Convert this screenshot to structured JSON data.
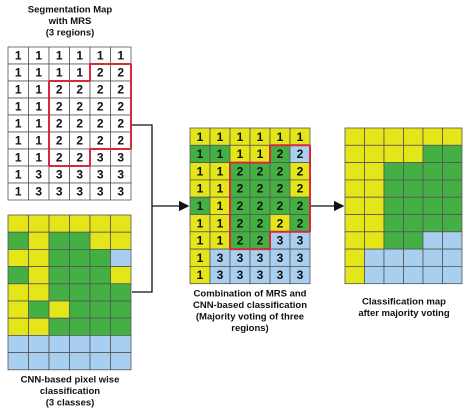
{
  "segmentation": {
    "title": [
      "Segmentation Map",
      "with MRS",
      "(3 regions)"
    ],
    "rows": [
      [
        1,
        1,
        1,
        1,
        1,
        1
      ],
      [
        1,
        1,
        1,
        1,
        2,
        2
      ],
      [
        1,
        1,
        2,
        2,
        2,
        2
      ],
      [
        1,
        1,
        2,
        2,
        2,
        2
      ],
      [
        1,
        1,
        2,
        2,
        2,
        2
      ],
      [
        1,
        1,
        2,
        2,
        2,
        2
      ],
      [
        1,
        1,
        2,
        2,
        3,
        3
      ],
      [
        1,
        3,
        3,
        3,
        3,
        3
      ],
      [
        1,
        3,
        3,
        3,
        3,
        3
      ]
    ]
  },
  "cnn": {
    "caption": [
      "CNN-based pixel wise",
      "classification",
      "(3 classes)"
    ],
    "colors": [
      [
        "Y",
        "Y",
        "Y",
        "Y",
        "Y",
        "Y"
      ],
      [
        "G",
        "Y",
        "G",
        "G",
        "Y",
        "Y"
      ],
      [
        "Y",
        "Y",
        "G",
        "G",
        "G",
        "B"
      ],
      [
        "G",
        "Y",
        "G",
        "G",
        "G",
        "Y"
      ],
      [
        "Y",
        "Y",
        "G",
        "G",
        "G",
        "G"
      ],
      [
        "Y",
        "G",
        "Y",
        "G",
        "G",
        "G"
      ],
      [
        "Y",
        "Y",
        "G",
        "G",
        "G",
        "G"
      ],
      [
        "B",
        "B",
        "B",
        "B",
        "B",
        "B"
      ],
      [
        "B",
        "B",
        "B",
        "B",
        "B",
        "B"
      ]
    ]
  },
  "combination": {
    "caption": [
      "Combination of MRS and",
      "CNN-based classification",
      "(Majority voting of three",
      "regions)"
    ],
    "rows": [
      [
        1,
        1,
        1,
        1,
        1,
        1
      ],
      [
        1,
        1,
        1,
        1,
        2,
        2
      ],
      [
        1,
        1,
        2,
        2,
        2,
        2
      ],
      [
        1,
        1,
        2,
        2,
        2,
        2
      ],
      [
        1,
        1,
        2,
        2,
        2,
        2
      ],
      [
        1,
        1,
        2,
        2,
        2,
        2
      ],
      [
        1,
        1,
        2,
        2,
        3,
        3
      ],
      [
        1,
        3,
        3,
        3,
        3,
        3
      ],
      [
        1,
        3,
        3,
        3,
        3,
        3
      ]
    ],
    "colors": [
      [
        "Y",
        "Y",
        "Y",
        "Y",
        "Y",
        "Y"
      ],
      [
        "G",
        "G",
        "Y",
        "Y",
        "G",
        "B"
      ],
      [
        "Y",
        "Y",
        "G",
        "G",
        "G",
        "Y"
      ],
      [
        "Y",
        "Y",
        "G",
        "G",
        "G",
        "Y"
      ],
      [
        "G",
        "Y",
        "G",
        "G",
        "G",
        "G"
      ],
      [
        "Y",
        "Y",
        "G",
        "G",
        "Y",
        "G"
      ],
      [
        "Y",
        "Y",
        "G",
        "G",
        "B",
        "B"
      ],
      [
        "Y",
        "B",
        "B",
        "B",
        "B",
        "B"
      ],
      [
        "Y",
        "B",
        "B",
        "B",
        "B",
        "B"
      ]
    ]
  },
  "classification": {
    "caption": [
      "Classification map",
      "after majority voting"
    ],
    "colors": [
      [
        "Y",
        "Y",
        "Y",
        "Y",
        "Y",
        "Y"
      ],
      [
        "Y",
        "Y",
        "Y",
        "Y",
        "G",
        "G"
      ],
      [
        "Y",
        "Y",
        "G",
        "G",
        "G",
        "G"
      ],
      [
        "Y",
        "Y",
        "G",
        "G",
        "G",
        "G"
      ],
      [
        "Y",
        "Y",
        "G",
        "G",
        "G",
        "G"
      ],
      [
        "Y",
        "Y",
        "G",
        "G",
        "G",
        "G"
      ],
      [
        "Y",
        "Y",
        "G",
        "G",
        "B",
        "B"
      ],
      [
        "Y",
        "B",
        "B",
        "B",
        "B",
        "B"
      ],
      [
        "Y",
        "B",
        "B",
        "B",
        "B",
        "B"
      ]
    ]
  },
  "palette": {
    "Y": "#e4e61a",
    "G": "#44b043",
    "B": "#a9cff0"
  }
}
